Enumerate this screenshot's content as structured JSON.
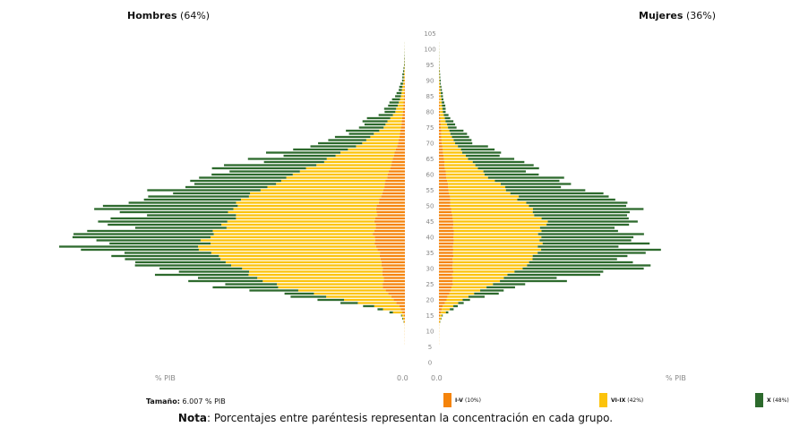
{
  "header": {
    "left_label": "Hombres",
    "left_pct": "(64%)",
    "right_label": "Mujeres",
    "right_pct": "(36%)"
  },
  "axis": {
    "left_unit": "% PIB",
    "right_unit": "% PIB",
    "left_zero": "0.0",
    "right_zero": "0.0"
  },
  "size": {
    "label": "Tamaño:",
    "value": "6.007 % PIB"
  },
  "legend": [
    {
      "label": "I-V",
      "pct": "(10%)",
      "color": "#f5840b"
    },
    {
      "label": "VI-IX",
      "pct": "(42%)",
      "color": "#fcc30b"
    },
    {
      "label": "X",
      "pct": "(48%)",
      "color": "#2d6a2d"
    }
  ],
  "note": {
    "bold": "Nota",
    "text": ": Porcentajes entre paréntesis representan la concentración en cada grupo."
  },
  "chart_data": {
    "type": "bar",
    "orientation": "horizontal-population-pyramid",
    "age_ticks": [
      0,
      5,
      10,
      15,
      20,
      25,
      30,
      35,
      40,
      45,
      50,
      55,
      60,
      65,
      70,
      75,
      80,
      85,
      90,
      95,
      100,
      105
    ],
    "age_range": [
      0,
      105
    ],
    "stack_order": [
      "I-V",
      "VI-IX",
      "X"
    ],
    "colors": [
      "#f5840b",
      "#fcc30b",
      "#2d6a2d"
    ],
    "hombres_knots": [
      [
        0,
        0,
        0,
        0
      ],
      [
        12,
        0.1,
        0.1,
        0
      ],
      [
        15,
        1,
        2,
        1
      ],
      [
        18,
        6,
        25,
        10
      ],
      [
        20,
        11,
        50,
        25
      ],
      [
        24,
        22,
        105,
        60
      ],
      [
        30,
        22,
        145,
        100
      ],
      [
        35,
        26,
        175,
        120
      ],
      [
        40,
        32,
        170,
        135
      ],
      [
        45,
        30,
        145,
        125
      ],
      [
        50,
        28,
        145,
        125
      ],
      [
        55,
        22,
        125,
        105
      ],
      [
        60,
        18,
        95,
        90
      ],
      [
        65,
        12,
        65,
        80
      ],
      [
        70,
        7,
        37,
        47
      ],
      [
        75,
        4,
        18,
        30
      ],
      [
        80,
        2,
        8,
        15
      ],
      [
        85,
        1,
        3,
        6
      ],
      [
        90,
        0.4,
        1,
        2
      ],
      [
        95,
        0.1,
        0.3,
        0.5
      ],
      [
        100,
        0,
        0.1,
        0.1
      ],
      [
        105,
        0,
        0,
        0
      ]
    ],
    "mujeres_knots": [
      [
        0,
        0,
        0,
        0
      ],
      [
        12,
        0.1,
        0.1,
        0
      ],
      [
        15,
        1,
        2,
        1
      ],
      [
        18,
        4,
        11,
        6
      ],
      [
        20,
        8,
        16,
        10
      ],
      [
        25,
        14,
        40,
        45
      ],
      [
        30,
        14,
        70,
        120
      ],
      [
        35,
        14,
        85,
        110
      ],
      [
        40,
        15,
        88,
        110
      ],
      [
        45,
        14,
        92,
        105
      ],
      [
        50,
        12,
        78,
        120
      ],
      [
        55,
        10,
        60,
        80
      ],
      [
        60,
        7,
        40,
        65
      ],
      [
        65,
        5,
        25,
        45
      ],
      [
        70,
        3,
        13,
        25
      ],
      [
        75,
        2,
        7,
        10
      ],
      [
        80,
        1,
        3,
        4
      ],
      [
        85,
        0.6,
        1.5,
        2
      ],
      [
        90,
        0.2,
        0.5,
        1
      ],
      [
        95,
        0.1,
        0.2,
        0.2
      ],
      [
        100,
        0,
        0.1,
        0.1
      ],
      [
        105,
        0,
        0,
        0
      ]
    ]
  }
}
